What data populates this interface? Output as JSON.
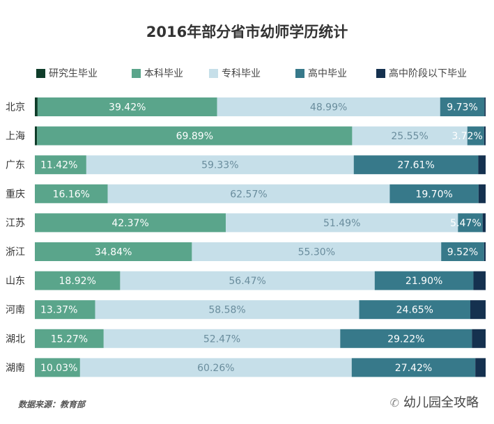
{
  "chart_data": {
    "type": "bar",
    "orientation": "horizontal",
    "stacked": true,
    "title": "2016年部分省市幼师学历统计",
    "categories": [
      "北京",
      "上海",
      "广东",
      "重庆",
      "江苏",
      "浙江",
      "山东",
      "河南",
      "湖北",
      "湖南"
    ],
    "series": [
      {
        "name": "研究生毕业",
        "color": "#0f3d2a",
        "values": [
          0.6,
          0.5,
          0.0,
          0.0,
          0.0,
          0.0,
          0.0,
          0.0,
          0.0,
          0.0
        ],
        "labels": [
          "",
          "",
          "",
          "",
          "",
          "",
          "",
          "",
          "",
          ""
        ]
      },
      {
        "name": "本科毕业",
        "color": "#5aa58b",
        "values": [
          39.42,
          69.89,
          11.42,
          16.16,
          42.37,
          34.84,
          18.92,
          13.37,
          15.27,
          10.03
        ],
        "labels": [
          "39.42%",
          "69.89%",
          "11.42%",
          "16.16%",
          "42.37%",
          "34.84%",
          "18.92%",
          "13.37%",
          "15.27%",
          "10.03%"
        ]
      },
      {
        "name": "专科毕业",
        "color": "#c6dfe9",
        "values": [
          48.99,
          25.55,
          59.33,
          62.57,
          51.49,
          55.3,
          56.47,
          58.58,
          52.47,
          60.26
        ],
        "labels": [
          "48.99%",
          "25.55%",
          "59.33%",
          "62.57%",
          "51.49%",
          "55.30%",
          "56.47%",
          "58.58%",
          "52.47%",
          "60.26%"
        ]
      },
      {
        "name": "高中毕业",
        "color": "#37798a",
        "values": [
          9.73,
          3.72,
          27.61,
          19.7,
          5.47,
          9.52,
          21.9,
          24.65,
          29.22,
          27.42
        ],
        "labels": [
          "9.73%",
          "3.72%",
          "27.61%",
          "19.70%",
          "5.47%",
          "9.52%",
          "21.90%",
          "24.65%",
          "29.22%",
          "27.42%"
        ]
      },
      {
        "name": "高中阶段以下毕业",
        "color": "#15314f",
        "values": [
          0.26,
          0.34,
          1.64,
          1.57,
          0.67,
          0.34,
          2.71,
          3.4,
          3.04,
          2.29
        ],
        "labels": [
          "",
          "",
          "",
          "",
          "",
          "",
          "",
          "",
          "",
          ""
        ]
      }
    ],
    "xlim": [
      0,
      100
    ],
    "grid": false,
    "legend_position": "top"
  },
  "footer": {
    "source": "数据来源：教育部",
    "watermark_icon": "wechat-icon",
    "watermark_text": "幼儿园全攻略"
  }
}
